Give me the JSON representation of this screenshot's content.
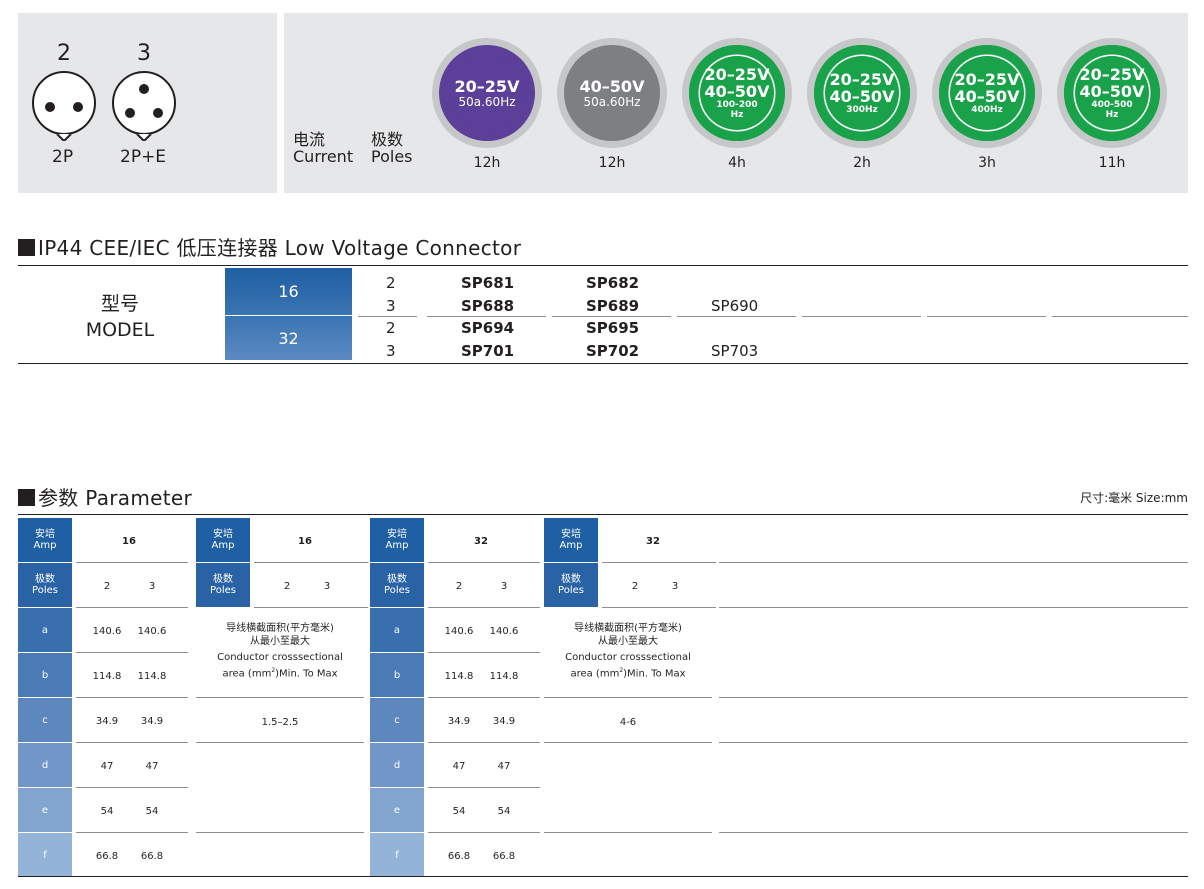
{
  "pins": [
    {
      "count": "2",
      "label": "2P"
    },
    {
      "count": "3",
      "label": "2P+E"
    }
  ],
  "legend": {
    "cn1": "电流",
    "en1": "Current",
    "cn2": "极数",
    "en2": "Poles"
  },
  "voltage_rings": [
    {
      "v1": "20–25V",
      "v2": "50a.60Hz",
      "v3": "",
      "v4": "",
      "hours": "12h",
      "color": "#5b3f98"
    },
    {
      "v1": "40–50V",
      "v2": "50a.60Hz",
      "v3": "",
      "v4": "",
      "hours": "12h",
      "color": "#7d7f82"
    },
    {
      "v1": "20–25V",
      "v2": "40–50V",
      "v3": "100-200",
      "v4": "Hz",
      "hours": "4h",
      "color": "#19a24a"
    },
    {
      "v1": "20–25V",
      "v2": "40–50V",
      "v3": "300Hz",
      "v4": "",
      "hours": "2h",
      "color": "#19a24a"
    },
    {
      "v1": "20–25V",
      "v2": "40–50V",
      "v3": "400Hz",
      "v4": "",
      "hours": "3h",
      "color": "#19a24a"
    },
    {
      "v1": "20–25V",
      "v2": "40–50V",
      "v3": "400-500",
      "v4": "Hz",
      "hours": "11h",
      "color": "#19a24a"
    }
  ],
  "connector_section": {
    "title": "IP44 CEE/IEC 低压连接器  Low Voltage Connector",
    "model_cn": "型号",
    "model_en": "MODEL",
    "groups": [
      {
        "amp": "16",
        "rows": [
          {
            "poles": "2",
            "c1": "SP681",
            "c2": "SP682",
            "c3": ""
          },
          {
            "poles": "3",
            "c1": "SP688",
            "c2": "SP689",
            "c3": "SP690"
          }
        ]
      },
      {
        "amp": "32",
        "rows": [
          {
            "poles": "2",
            "c1": "SP694",
            "c2": "SP695",
            "c3": ""
          },
          {
            "poles": "3",
            "c1": "SP701",
            "c2": "SP702",
            "c3": "SP703"
          }
        ]
      }
    ]
  },
  "parameter_section": {
    "title": "参数 Parameter",
    "size_unit": "尺寸:毫米  Size:mm",
    "amp_label_cn": "安培",
    "amp_label_en": "Amp",
    "poles_label_cn": "极数",
    "poles_label_en": "Poles",
    "row_labels": [
      "a",
      "b",
      "c",
      "d",
      "e",
      "f"
    ],
    "blocks": [
      {
        "amp": "16",
        "poles": [
          "2",
          "3"
        ],
        "values": [
          [
            "140.6",
            "140.6"
          ],
          [
            "114.8",
            "114.8"
          ],
          [
            "34.9",
            "34.9"
          ],
          [
            "47",
            "47"
          ],
          [
            "54",
            "54"
          ],
          [
            "66.8",
            "66.8"
          ]
        ]
      },
      {
        "amp": "32",
        "poles": [
          "2",
          "3"
        ],
        "values": [
          [
            "140.6",
            "140.6"
          ],
          [
            "114.8",
            "114.8"
          ],
          [
            "34.9",
            "34.9"
          ],
          [
            "47",
            "47"
          ],
          [
            "54",
            "54"
          ],
          [
            "66.8",
            "66.8"
          ]
        ]
      }
    ],
    "side_blocks": [
      {
        "amp": "16",
        "poles": [
          "2",
          "3"
        ],
        "range": "1.5–2.5"
      },
      {
        "amp": "32",
        "poles": [
          "2",
          "3"
        ],
        "range": "4-6"
      }
    ],
    "conductor_note": {
      "cn1": "导线横截面积(平方毫米)",
      "cn2": "从最小至最大",
      "en1": "Conductor crosssectional",
      "en2_pre": "area (mm",
      "en2_sup": "2",
      "en2_post": ")Min. To Max"
    }
  },
  "colors": {
    "header_blue": "#1f5fa3",
    "row_blue_top": "#2e6bab",
    "row_blue_bottom": "#7fa3cf",
    "panel_gray": "#e6e7e8"
  }
}
